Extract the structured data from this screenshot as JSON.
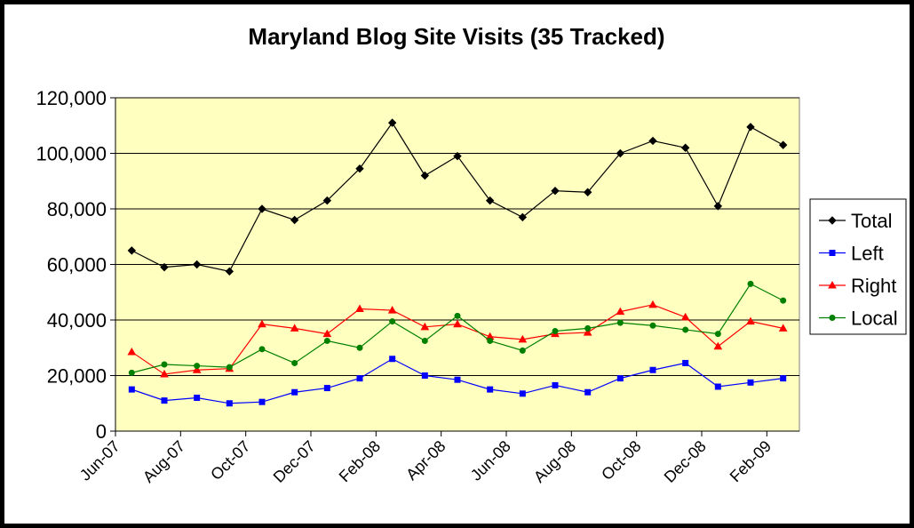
{
  "chart_data": {
    "type": "line",
    "title": "Maryland Blog Site Visits (35 Tracked)",
    "xlabel": "",
    "ylabel": "",
    "ylim": [
      0,
      120000
    ],
    "yticks": [
      "0",
      "20,000",
      "40,000",
      "60,000",
      "80,000",
      "100,000",
      "120,000"
    ],
    "ytick_values": [
      0,
      20000,
      40000,
      60000,
      80000,
      100000,
      120000
    ],
    "xtick_labels": [
      "Jun-07",
      "Aug-07",
      "Oct-07",
      "Dec-07",
      "Feb-08",
      "Apr-08",
      "Jun-08",
      "Aug-08",
      "Oct-08",
      "Dec-08",
      "Feb-09"
    ],
    "x": [
      "Jun-07",
      "Jul-07",
      "Aug-07",
      "Sep-07",
      "Oct-07",
      "Nov-07",
      "Dec-07",
      "Jan-08",
      "Feb-08",
      "Mar-08",
      "Apr-08",
      "May-08",
      "Jun-08",
      "Jul-08",
      "Aug-08",
      "Sep-08",
      "Oct-08",
      "Nov-08",
      "Dec-08",
      "Jan-09",
      "Feb-09"
    ],
    "grid": true,
    "plot_background": "#ffffc0",
    "legend_position": "right",
    "series": [
      {
        "name": "Total",
        "color": "#000000",
        "marker": "diamond",
        "values": [
          65000,
          59000,
          60000,
          57500,
          80000,
          76000,
          83000,
          94500,
          111000,
          92000,
          99000,
          83000,
          77000,
          86500,
          86000,
          100000,
          104500,
          102000,
          81000,
          109500,
          103000
        ]
      },
      {
        "name": "Left",
        "color": "#0000ff",
        "marker": "square",
        "values": [
          15000,
          11000,
          12000,
          10000,
          10500,
          14000,
          15500,
          19000,
          26000,
          20000,
          18500,
          15000,
          13500,
          16500,
          14000,
          19000,
          22000,
          24500,
          16000,
          17500,
          19000
        ]
      },
      {
        "name": "Right",
        "color": "#ff0000",
        "marker": "triangle",
        "values": [
          28500,
          20500,
          22000,
          22500,
          38500,
          37000,
          35000,
          44000,
          43500,
          37500,
          38500,
          34000,
          33000,
          35000,
          35500,
          43000,
          45500,
          41000,
          30500,
          39500,
          37000
        ]
      },
      {
        "name": "Local",
        "color": "#008000",
        "marker": "circle",
        "values": [
          21000,
          24000,
          23500,
          23000,
          29500,
          24500,
          32500,
          30000,
          39500,
          32500,
          41500,
          32500,
          29000,
          36000,
          37000,
          39000,
          38000,
          36500,
          35000,
          53000,
          47000
        ]
      }
    ]
  }
}
